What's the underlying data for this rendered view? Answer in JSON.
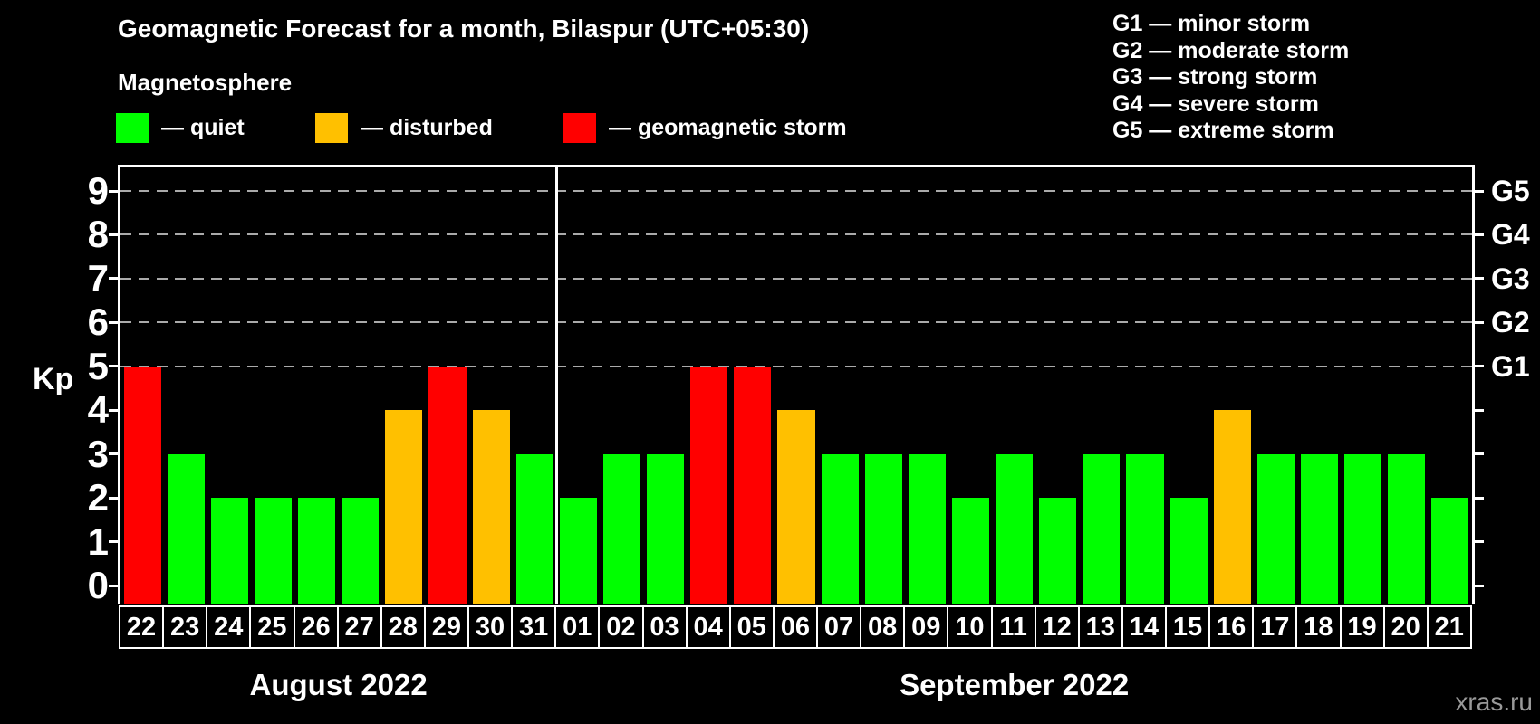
{
  "header": {
    "title": "Geomagnetic Forecast for a month, Bilaspur (UTC+05:30)",
    "subtitle": "Magnetosphere",
    "watermark": "xras.ru"
  },
  "legend": {
    "items": [
      {
        "label": "— quiet",
        "color": "#00ff00"
      },
      {
        "label": "— disturbed",
        "color": "#ffc000"
      },
      {
        "label": "— geomagnetic storm",
        "color": "#ff0000"
      }
    ]
  },
  "storm_legend": {
    "items": [
      "G1 — minor storm",
      "G2 — moderate storm",
      "G3 — strong storm",
      "G4 — severe storm",
      "G5 — extreme storm"
    ]
  },
  "chart_data": {
    "type": "bar",
    "title": "Geomagnetic Forecast for a month, Bilaspur (UTC+05:30)",
    "ylabel": "Kp",
    "ylim": [
      0,
      9.5
    ],
    "yticks": [
      0,
      1,
      2,
      3,
      4,
      5,
      6,
      7,
      8,
      9
    ],
    "grid_levels": [
      5,
      6,
      7,
      8,
      9
    ],
    "grid_color": "#aaaaaa",
    "right_axis": [
      {
        "level": 5,
        "label": "G1"
      },
      {
        "level": 6,
        "label": "G2"
      },
      {
        "level": 7,
        "label": "G3"
      },
      {
        "level": 8,
        "label": "G4"
      },
      {
        "level": 9,
        "label": "G5"
      }
    ],
    "months": [
      {
        "label": "August 2022",
        "days": 10
      },
      {
        "label": "September 2022",
        "days": 21
      }
    ],
    "categories": [
      "22",
      "23",
      "24",
      "25",
      "26",
      "27",
      "28",
      "29",
      "30",
      "31",
      "01",
      "02",
      "03",
      "04",
      "05",
      "06",
      "07",
      "08",
      "09",
      "10",
      "11",
      "12",
      "13",
      "14",
      "15",
      "16",
      "17",
      "18",
      "19",
      "20",
      "21"
    ],
    "values": [
      5,
      3,
      2,
      2,
      2,
      2,
      4,
      5,
      4,
      3,
      2,
      3,
      3,
      5,
      5,
      4,
      3,
      3,
      3,
      2,
      3,
      2,
      3,
      3,
      2,
      4,
      3,
      3,
      3,
      3,
      2
    ],
    "level_colors": {
      "quiet": "#00ff00",
      "disturbed": "#ffc000",
      "storm": "#ff0000"
    },
    "thresholds": {
      "disturbed": 4,
      "storm": 5
    }
  }
}
